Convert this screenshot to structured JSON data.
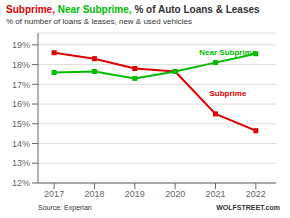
{
  "chart_data": {
    "type": "line",
    "title": "Subprime, Near Subprime, % of Auto Loans & Leases",
    "subtitle": "% of number of loans & leases, new & used vehicles",
    "x": [
      2017,
      2018,
      2019,
      2020,
      2021,
      2022
    ],
    "series": [
      {
        "name": "Subprime",
        "color": "#dd0000",
        "marker": "square",
        "values": [
          18.6,
          18.3,
          17.8,
          17.65,
          15.5,
          14.65
        ]
      },
      {
        "name": "Near Subprime",
        "color": "#00bb00",
        "marker": "square",
        "values": [
          17.6,
          17.65,
          17.3,
          17.65,
          18.1,
          18.55
        ]
      }
    ],
    "xlim": [
      2016.6,
      2022.5
    ],
    "xticks": [
      2017,
      2018,
      2019,
      2020,
      2021,
      2022
    ],
    "ylim": [
      12,
      19.6
    ],
    "yticks": [
      {
        "value": 12,
        "label": "12%"
      },
      {
        "value": 13,
        "label": "13%"
      },
      {
        "value": 14,
        "label": "14%"
      },
      {
        "value": 15,
        "label": "15%"
      },
      {
        "value": 16,
        "label": "16%"
      },
      {
        "value": 17,
        "label": "17%"
      },
      {
        "value": 18,
        "label": "18%"
      },
      {
        "value": 19,
        "label": "19%"
      }
    ],
    "grid": true,
    "annotations": [
      {
        "text": "Subprime",
        "x": 2020.85,
        "y": 16.55,
        "color": "#dd0000"
      },
      {
        "text": "Near Subprime",
        "x": 2020.6,
        "y": 18.62,
        "color": "#00bb00"
      }
    ],
    "source": "Source: Experian",
    "watermark": "WOLFSTREET.com"
  }
}
